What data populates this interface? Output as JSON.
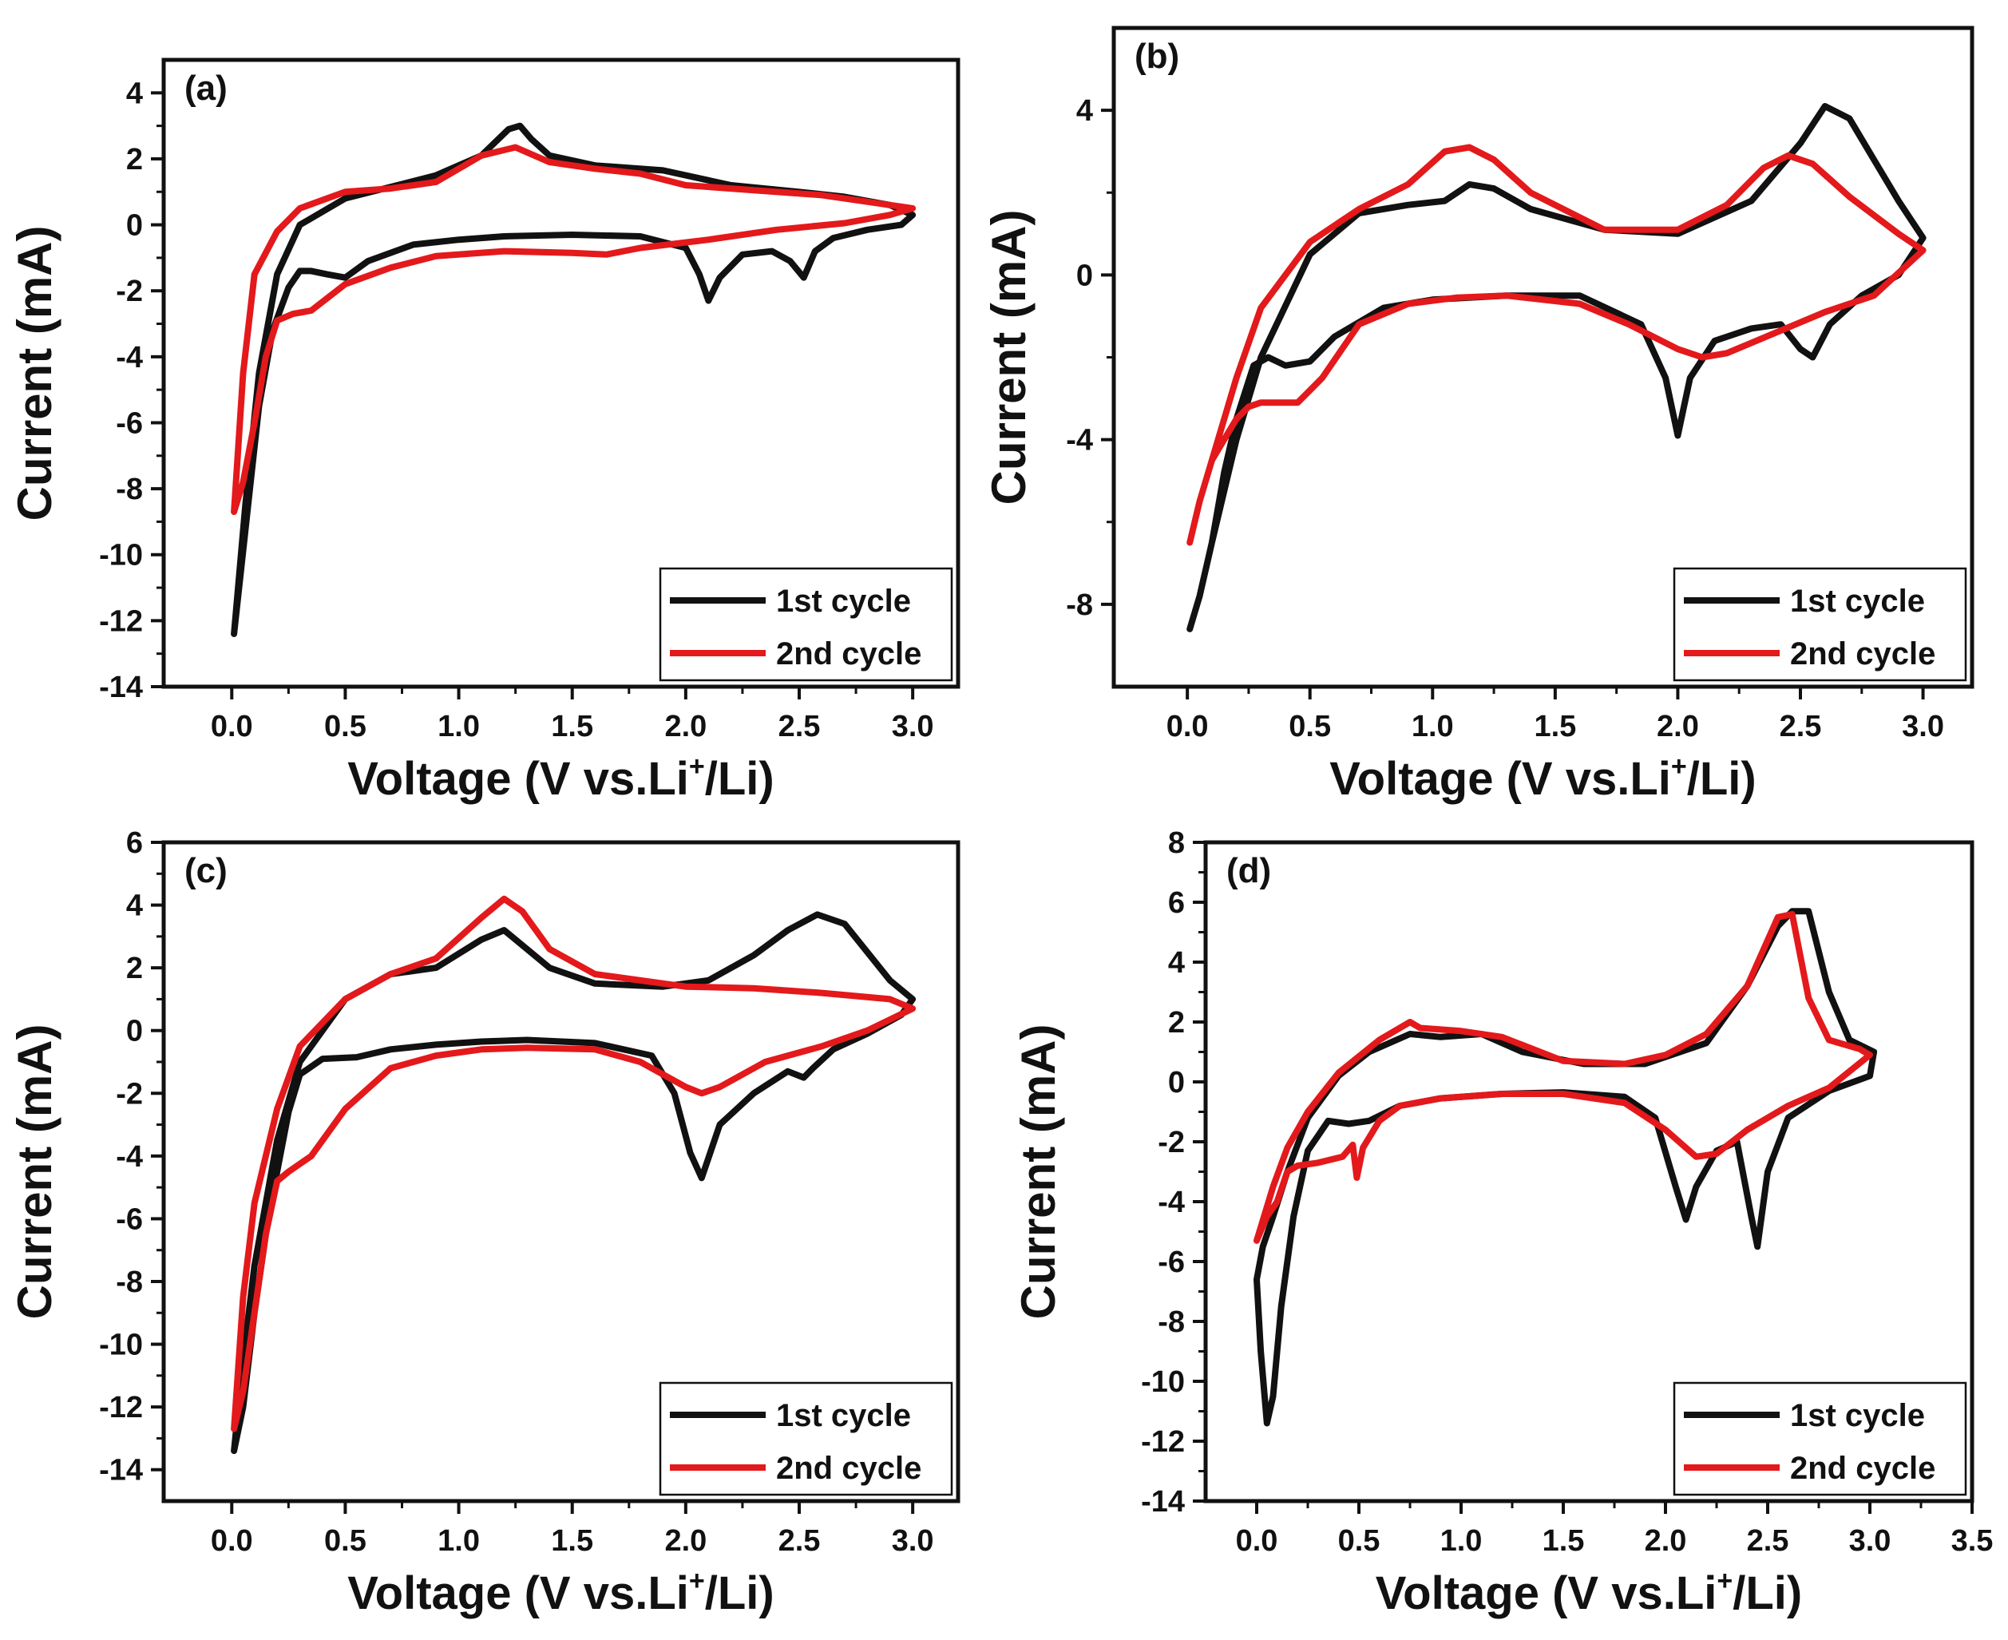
{
  "figure": {
    "description": "Cyclic voltammetry curves, first and second cycles, four electrodes (a)-(d)"
  },
  "colors": {
    "cycle1": "#111111",
    "cycle2": "#e3191b",
    "axis": "#111111",
    "background": "#ffffff"
  },
  "chart_data": [
    {
      "panel": "(a)",
      "type": "line",
      "xlabel": "Voltage (V vs.Li+/Li)",
      "xlabel_main": "Voltage (V vs.Li",
      "xlabel_sup": "+",
      "xlabel_end": "/Li)",
      "ylabel": "Current (mA)",
      "xlim": [
        -0.3,
        3.2
      ],
      "ylim": [
        -14,
        5
      ],
      "xticks": [
        0.0,
        0.5,
        1.0,
        1.5,
        2.0,
        2.5,
        3.0
      ],
      "xtick_labels": [
        "0.0",
        "0.5",
        "1.0",
        "1.5",
        "2.0",
        "2.5",
        "3.0"
      ],
      "yticks": [
        -14,
        -12,
        -10,
        -8,
        -6,
        -4,
        -2,
        0,
        2,
        4
      ],
      "ytick_labels": [
        "-14",
        "-12",
        "-10",
        "-8",
        "-6",
        "-4",
        "-2",
        "0",
        "2",
        "4"
      ],
      "legend": [
        "1st cycle",
        "2nd cycle"
      ],
      "legend_position": "bottom-right",
      "series": [
        {
          "name": "1st cycle",
          "x": [
            0.01,
            0.04,
            0.08,
            0.12,
            0.18,
            0.25,
            0.3,
            0.35,
            0.42,
            0.5,
            0.6,
            0.8,
            1.0,
            1.2,
            1.5,
            1.8,
            2.0,
            2.06,
            2.1,
            2.15,
            2.25,
            2.38,
            2.46,
            2.52,
            2.57,
            2.65,
            2.8,
            2.95,
            3.0,
            2.9,
            2.7,
            2.5,
            2.2,
            1.9,
            1.6,
            1.4,
            1.32,
            1.27,
            1.22,
            1.1,
            0.9,
            0.7,
            0.5,
            0.3,
            0.2,
            0.12,
            0.06,
            0.01
          ],
          "y": [
            -12.4,
            -10.5,
            -8.0,
            -5.5,
            -3.2,
            -1.9,
            -1.4,
            -1.4,
            -1.5,
            -1.6,
            -1.1,
            -0.6,
            -0.45,
            -0.35,
            -0.3,
            -0.35,
            -0.7,
            -1.5,
            -2.3,
            -1.6,
            -0.9,
            -0.8,
            -1.1,
            -1.6,
            -0.8,
            -0.4,
            -0.15,
            0.0,
            0.3,
            0.6,
            0.85,
            1.0,
            1.2,
            1.65,
            1.8,
            2.1,
            2.6,
            3.0,
            2.9,
            2.1,
            1.5,
            1.15,
            0.8,
            0.0,
            -1.5,
            -4.5,
            -8.5,
            -12.4
          ]
        },
        {
          "name": "2nd cycle",
          "x": [
            0.01,
            0.05,
            0.1,
            0.15,
            0.2,
            0.27,
            0.35,
            0.5,
            0.7,
            0.9,
            1.2,
            1.5,
            1.65,
            1.8,
            2.1,
            2.4,
            2.7,
            2.9,
            3.0,
            2.9,
            2.6,
            2.3,
            2.0,
            1.8,
            1.6,
            1.4,
            1.25,
            1.1,
            0.9,
            0.7,
            0.5,
            0.3,
            0.2,
            0.1,
            0.05,
            0.01
          ],
          "y": [
            -8.7,
            -7.8,
            -6.0,
            -4.0,
            -2.9,
            -2.7,
            -2.6,
            -1.8,
            -1.3,
            -0.95,
            -0.8,
            -0.85,
            -0.9,
            -0.7,
            -0.45,
            -0.15,
            0.05,
            0.3,
            0.5,
            0.6,
            0.9,
            1.05,
            1.2,
            1.55,
            1.7,
            1.9,
            2.35,
            2.1,
            1.3,
            1.1,
            1.0,
            0.5,
            -0.2,
            -1.5,
            -4.5,
            -8.7
          ]
        }
      ]
    },
    {
      "panel": "(b)",
      "type": "line",
      "xlabel": "Voltage (V vs.Li+/Li)",
      "xlabel_main": "Voltage (V vs.Li",
      "xlabel_sup": "+",
      "xlabel_end": "/Li)",
      "ylabel": "Current (mA)",
      "xlim": [
        -0.3,
        3.2
      ],
      "ylim": [
        -10,
        6
      ],
      "xticks": [
        0.0,
        0.5,
        1.0,
        1.5,
        2.0,
        2.5,
        3.0
      ],
      "xtick_labels": [
        "0.0",
        "0.5",
        "1.0",
        "1.5",
        "2.0",
        "2.5",
        "3.0"
      ],
      "yticks": [
        -8,
        -4,
        0,
        4
      ],
      "ytick_labels": [
        "-8",
        "-4",
        "0",
        "4"
      ],
      "legend": [
        "1st cycle",
        "2nd cycle"
      ],
      "legend_position": "bottom-right",
      "series": [
        {
          "name": "1st cycle",
          "x": [
            0.01,
            0.05,
            0.1,
            0.15,
            0.2,
            0.27,
            0.33,
            0.4,
            0.5,
            0.6,
            0.8,
            1.0,
            1.3,
            1.6,
            1.85,
            1.95,
            2.0,
            2.05,
            2.15,
            2.3,
            2.42,
            2.5,
            2.55,
            2.62,
            2.75,
            2.9,
            3.0,
            2.9,
            2.8,
            2.7,
            2.6,
            2.5,
            2.3,
            2.0,
            1.7,
            1.4,
            1.25,
            1.15,
            1.05,
            0.9,
            0.7,
            0.5,
            0.3,
            0.2,
            0.1,
            0.05,
            0.01
          ],
          "y": [
            -8.6,
            -7.8,
            -6.5,
            -4.8,
            -3.5,
            -2.2,
            -2.0,
            -2.2,
            -2.1,
            -1.5,
            -0.8,
            -0.6,
            -0.5,
            -0.5,
            -1.2,
            -2.5,
            -3.9,
            -2.5,
            -1.6,
            -1.3,
            -1.2,
            -1.8,
            -2.0,
            -1.2,
            -0.5,
            0.0,
            0.9,
            1.8,
            2.8,
            3.8,
            4.1,
            3.2,
            1.8,
            1.0,
            1.1,
            1.6,
            2.1,
            2.2,
            1.8,
            1.7,
            1.5,
            0.5,
            -2.0,
            -4.0,
            -6.5,
            -7.8,
            -8.6
          ]
        },
        {
          "name": "2nd cycle",
          "x": [
            0.01,
            0.05,
            0.1,
            0.15,
            0.2,
            0.25,
            0.3,
            0.45,
            0.55,
            0.7,
            0.9,
            1.1,
            1.3,
            1.6,
            1.8,
            2.0,
            2.1,
            2.2,
            2.4,
            2.6,
            2.8,
            3.0,
            2.9,
            2.7,
            2.55,
            2.45,
            2.35,
            2.2,
            2.0,
            1.7,
            1.4,
            1.25,
            1.15,
            1.05,
            0.9,
            0.7,
            0.5,
            0.3,
            0.2,
            0.1,
            0.05,
            0.01
          ],
          "y": [
            -6.5,
            -5.5,
            -4.5,
            -4.0,
            -3.5,
            -3.2,
            -3.1,
            -3.1,
            -2.5,
            -1.2,
            -0.7,
            -0.55,
            -0.5,
            -0.7,
            -1.2,
            -1.8,
            -2.0,
            -1.9,
            -1.4,
            -0.9,
            -0.5,
            0.6,
            1.0,
            1.9,
            2.7,
            2.9,
            2.6,
            1.7,
            1.1,
            1.1,
            2.0,
            2.8,
            3.1,
            3.0,
            2.2,
            1.6,
            0.8,
            -0.8,
            -2.5,
            -4.5,
            -5.5,
            -6.5
          ]
        }
      ]
    },
    {
      "panel": "(c)",
      "type": "line",
      "xlabel": "Voltage (V vs.Li+/Li)",
      "xlabel_main": "Voltage (V vs.Li",
      "xlabel_sup": "+",
      "xlabel_end": "/Li)",
      "ylabel": "Current (mA)",
      "xlim": [
        -0.3,
        3.2
      ],
      "ylim": [
        -15,
        6
      ],
      "xticks": [
        0.0,
        0.5,
        1.0,
        1.5,
        2.0,
        2.5,
        3.0
      ],
      "xtick_labels": [
        "0.0",
        "0.5",
        "1.0",
        "1.5",
        "2.0",
        "2.5",
        "3.0"
      ],
      "yticks": [
        -14,
        -12,
        -10,
        -8,
        -6,
        -4,
        -2,
        0,
        2,
        4,
        6
      ],
      "ytick_labels": [
        "-14",
        "-12",
        "-10",
        "-8",
        "-6",
        "-4",
        "-2",
        "0",
        "2",
        "4",
        "6"
      ],
      "legend": [
        "1st cycle",
        "2nd cycle"
      ],
      "legend_position": "bottom-right",
      "series": [
        {
          "name": "1st cycle",
          "x": [
            0.01,
            0.05,
            0.1,
            0.15,
            0.2,
            0.25,
            0.3,
            0.4,
            0.55,
            0.7,
            0.9,
            1.1,
            1.3,
            1.6,
            1.85,
            1.95,
            2.02,
            2.07,
            2.15,
            2.3,
            2.45,
            2.52,
            2.56,
            2.65,
            2.8,
            2.95,
            3.0,
            2.9,
            2.8,
            2.7,
            2.58,
            2.45,
            2.3,
            2.1,
            1.9,
            1.6,
            1.4,
            1.3,
            1.2,
            1.1,
            0.9,
            0.7,
            0.5,
            0.3,
            0.2,
            0.1,
            0.05,
            0.01
          ],
          "y": [
            -13.4,
            -12.0,
            -9.0,
            -6.5,
            -4.5,
            -2.6,
            -1.4,
            -0.9,
            -0.85,
            -0.6,
            -0.45,
            -0.35,
            -0.3,
            -0.4,
            -0.8,
            -2.0,
            -3.9,
            -4.7,
            -3.0,
            -2.0,
            -1.3,
            -1.5,
            -1.2,
            -0.6,
            -0.1,
            0.5,
            1.0,
            1.6,
            2.5,
            3.4,
            3.7,
            3.2,
            2.4,
            1.6,
            1.4,
            1.5,
            2.0,
            2.6,
            3.2,
            2.9,
            2.0,
            1.8,
            1.0,
            -1.0,
            -3.5,
            -7.5,
            -10.5,
            -13.4
          ]
        },
        {
          "name": "2nd cycle",
          "x": [
            0.01,
            0.05,
            0.1,
            0.15,
            0.2,
            0.25,
            0.35,
            0.5,
            0.7,
            0.9,
            1.1,
            1.3,
            1.6,
            1.8,
            2.0,
            2.07,
            2.15,
            2.35,
            2.6,
            2.8,
            3.0,
            2.9,
            2.6,
            2.3,
            2.0,
            1.8,
            1.6,
            1.4,
            1.28,
            1.2,
            1.1,
            0.9,
            0.7,
            0.5,
            0.3,
            0.2,
            0.1,
            0.05,
            0.01
          ],
          "y": [
            -12.7,
            -11.5,
            -9.0,
            -6.5,
            -4.8,
            -4.5,
            -4.0,
            -2.5,
            -1.2,
            -0.8,
            -0.6,
            -0.55,
            -0.6,
            -1.0,
            -1.8,
            -2.0,
            -1.8,
            -1.0,
            -0.5,
            0.0,
            0.7,
            1.0,
            1.2,
            1.35,
            1.4,
            1.6,
            1.8,
            2.6,
            3.8,
            4.2,
            3.6,
            2.3,
            1.8,
            1.0,
            -0.5,
            -2.5,
            -5.5,
            -8.5,
            -12.7
          ]
        }
      ]
    },
    {
      "panel": "(d)",
      "type": "line",
      "xlabel": "Voltage (V vs.Li+/Li)",
      "xlabel_main": "Voltage (V vs.Li",
      "xlabel_sup": "+",
      "xlabel_end": "/Li)",
      "ylabel": "Current (mA)",
      "xlim": [
        -0.25,
        3.5
      ],
      "ylim": [
        -14,
        8
      ],
      "xticks": [
        0.0,
        0.5,
        1.0,
        1.5,
        2.0,
        2.5,
        3.0,
        3.5
      ],
      "xtick_labels": [
        "0.0",
        "0.5",
        "1.0",
        "1.5",
        "2.0",
        "2.5",
        "3.0",
        "3.5"
      ],
      "yticks": [
        -14,
        -12,
        -10,
        -8,
        -6,
        -4,
        -2,
        0,
        2,
        4,
        6,
        8
      ],
      "ytick_labels": [
        "-14",
        "-12",
        "-10",
        "-8",
        "-6",
        "-4",
        "-2",
        "0",
        "2",
        "4",
        "6",
        "8"
      ],
      "legend": [
        "1st cycle",
        "2nd cycle"
      ],
      "legend_position": "bottom-right",
      "series": [
        {
          "name": "1st cycle",
          "x": [
            0.0,
            0.02,
            0.05,
            0.08,
            0.12,
            0.18,
            0.25,
            0.35,
            0.45,
            0.55,
            0.7,
            0.9,
            1.2,
            1.5,
            1.8,
            1.95,
            2.05,
            2.1,
            2.15,
            2.25,
            2.35,
            2.42,
            2.45,
            2.5,
            2.6,
            2.8,
            3.0,
            3.02,
            2.9,
            2.8,
            2.7,
            2.62,
            2.55,
            2.4,
            2.2,
            1.9,
            1.6,
            1.3,
            1.1,
            0.9,
            0.75,
            0.55,
            0.4,
            0.25,
            0.15,
            0.08,
            0.03,
            0.0
          ],
          "y": [
            -6.6,
            -9.0,
            -11.4,
            -10.5,
            -7.5,
            -4.5,
            -2.3,
            -1.3,
            -1.4,
            -1.3,
            -0.8,
            -0.55,
            -0.4,
            -0.35,
            -0.5,
            -1.2,
            -3.5,
            -4.6,
            -3.5,
            -2.3,
            -2.0,
            -4.5,
            -5.5,
            -3.0,
            -1.2,
            -0.3,
            0.2,
            1.0,
            1.4,
            3.0,
            5.7,
            5.7,
            5.2,
            3.2,
            1.3,
            0.6,
            0.6,
            1.0,
            1.6,
            1.5,
            1.6,
            1.0,
            0.2,
            -1.2,
            -3.0,
            -4.5,
            -5.5,
            -6.6
          ]
        },
        {
          "name": "2nd cycle",
          "x": [
            0.0,
            0.05,
            0.1,
            0.15,
            0.2,
            0.3,
            0.42,
            0.47,
            0.49,
            0.52,
            0.6,
            0.7,
            0.9,
            1.2,
            1.5,
            1.8,
            2.0,
            2.15,
            2.25,
            2.4,
            2.6,
            2.8,
            3.0,
            2.95,
            2.8,
            2.7,
            2.62,
            2.55,
            2.4,
            2.2,
            2.0,
            1.8,
            1.5,
            1.2,
            1.0,
            0.8,
            0.75,
            0.6,
            0.4,
            0.25,
            0.15,
            0.08,
            0.0
          ],
          "y": [
            -5.3,
            -4.5,
            -4.0,
            -3.0,
            -2.8,
            -2.7,
            -2.5,
            -2.1,
            -3.2,
            -2.2,
            -1.3,
            -0.8,
            -0.55,
            -0.4,
            -0.4,
            -0.7,
            -1.6,
            -2.5,
            -2.4,
            -1.6,
            -0.8,
            -0.2,
            0.9,
            1.1,
            1.4,
            2.8,
            5.6,
            5.5,
            3.2,
            1.6,
            0.9,
            0.6,
            0.7,
            1.5,
            1.7,
            1.8,
            2.0,
            1.4,
            0.3,
            -1.0,
            -2.2,
            -3.5,
            -5.3
          ]
        }
      ]
    }
  ]
}
